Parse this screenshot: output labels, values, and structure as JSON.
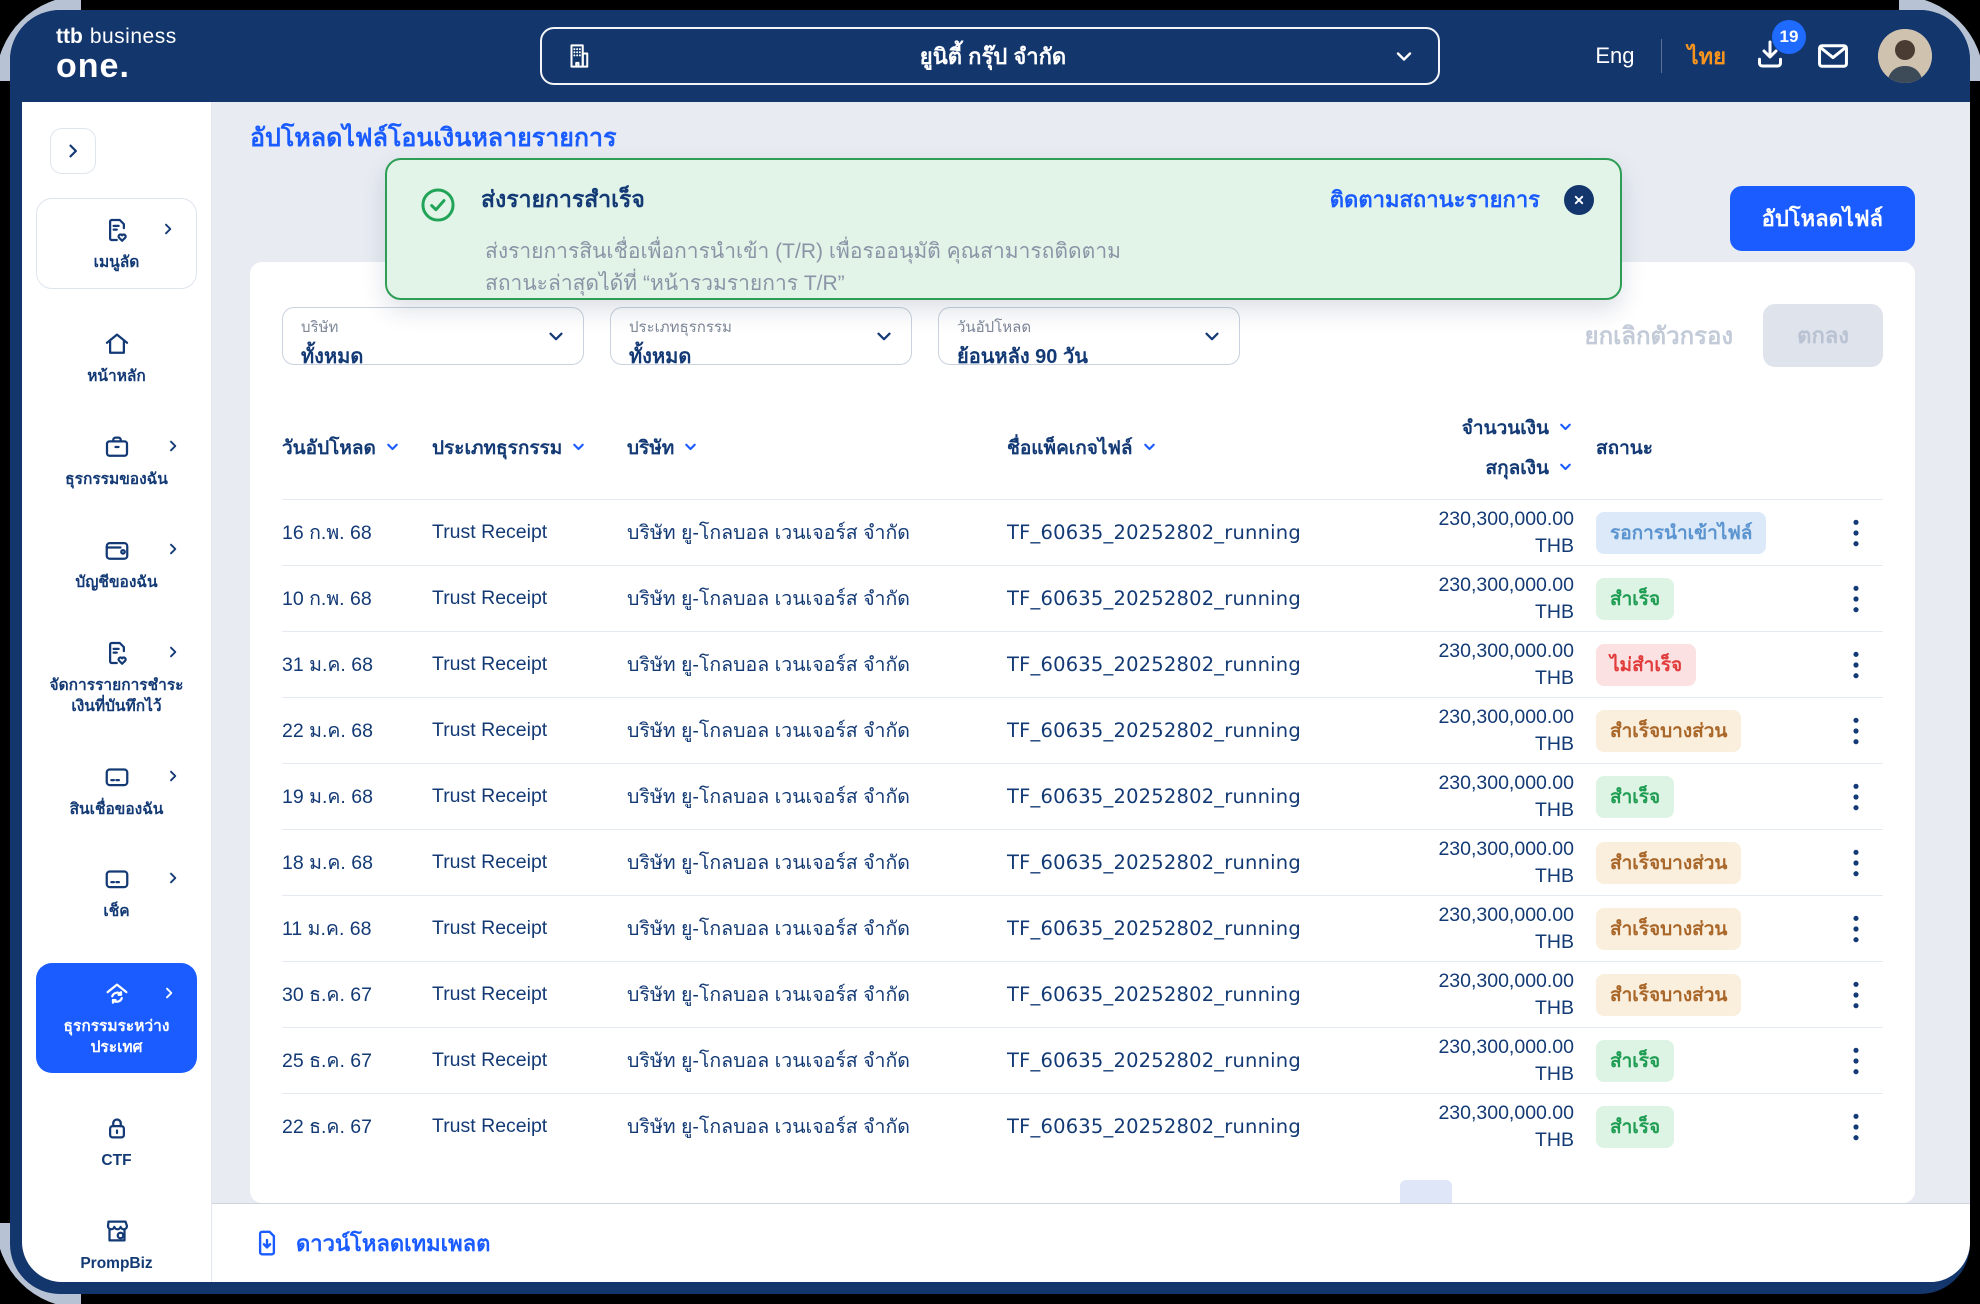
{
  "topbar": {
    "logo": {
      "brand": "ttb",
      "suffix": "business",
      "product": "one."
    },
    "company_selector": {
      "value": "ยูนิตี้ กรุ๊ป จำกัด"
    },
    "lang": {
      "eng": "Eng",
      "thai": "ไทย",
      "active": "ไทย"
    },
    "download_badge": "19"
  },
  "sidebar": {
    "items": [
      {
        "key": "menu-shortcuts",
        "label": "เมนูลัด",
        "icon": "doc-heart",
        "chevron": true,
        "boxed": true
      },
      {
        "key": "home",
        "label": "หน้าหลัก",
        "icon": "home",
        "chevron": false
      },
      {
        "key": "my-transactions",
        "label": "ธุรกรรมของฉัน",
        "icon": "briefcase",
        "chevron": true
      },
      {
        "key": "my-accounts",
        "label": "บัญชีของฉัน",
        "icon": "wallet",
        "chevron": true
      },
      {
        "key": "saved-payments",
        "label": "จัดการรายการชำระเงินที่บันทึกไว้",
        "icon": "doc-heart",
        "chevron": true
      },
      {
        "key": "my-loans",
        "label": "สินเชื่อของฉัน",
        "icon": "card",
        "chevron": true
      },
      {
        "key": "cheque",
        "label": "เช็ค",
        "icon": "card",
        "chevron": true
      },
      {
        "key": "international-transactions",
        "label": "ธุรกรรมระหว่างประเทศ",
        "icon": "globe-home",
        "chevron": true,
        "active": true
      },
      {
        "key": "ctf",
        "label": "CTF",
        "icon": "lock",
        "chevron": false
      },
      {
        "key": "prompbiz",
        "label": "PrompBiz",
        "icon": "store",
        "chevron": false
      }
    ]
  },
  "page": {
    "title": "อัปโหลดไฟล์โอนเงินหลายรายการ"
  },
  "toast": {
    "title": "ส่งรายการสำเร็จ",
    "body_line1": "ส่งรายการสินเชื่อเพื่อการนำเข้า (T/R) เพื่อรออนุมัติ คุณสามารถติดตาม",
    "body_line2": "สถานะล่าสุดได้ที่ “หน้ารวมรายการ T/R”",
    "link": "ติดตามสถานะรายการ"
  },
  "actions": {
    "upload": "อัปโหลดไฟล์"
  },
  "filters": {
    "items": [
      {
        "label": "บริษัท",
        "value": "ทั้งหมด"
      },
      {
        "label": "ประเภทธุรกรรม",
        "value": "ทั้งหมด"
      },
      {
        "label": "วันอัปโหลด",
        "value": "ย้อนหลัง 90 วัน"
      }
    ],
    "clear": "ยกเลิกตัวกรอง",
    "apply": "ตกลง"
  },
  "table": {
    "headers": {
      "upload_date": "วันอัปโหลด",
      "txn_type": "ประเภทธุรกรรม",
      "company": "บริษัท",
      "package_name": "ชื่อแพ็คเกจไฟล์",
      "amount": "จำนวนเงิน",
      "currency": "สกุลเงิน",
      "status": "สถานะ"
    },
    "status_labels": {
      "pending": "รอการนำเข้าไฟล์",
      "success": "สำเร็จ",
      "failed": "ไม่สำเร็จ",
      "partial": "สำเร็จบางส่วน"
    },
    "rows": [
      {
        "date": "16 ก.พ. 68",
        "type": "Trust Receipt",
        "company": "บริษัท ยู-โกลบอล เวนเจอร์ส จำกัด",
        "package": "TF_60635_20252802_running",
        "amount": "230,300,000.00",
        "currency": "THB",
        "status": "pending"
      },
      {
        "date": "10 ก.พ. 68",
        "type": "Trust Receipt",
        "company": "บริษัท ยู-โกลบอล เวนเจอร์ส จำกัด",
        "package": "TF_60635_20252802_running",
        "amount": "230,300,000.00",
        "currency": "THB",
        "status": "success"
      },
      {
        "date": "31 ม.ค. 68",
        "type": "Trust Receipt",
        "company": "บริษัท ยู-โกลบอล เวนเจอร์ส จำกัด",
        "package": "TF_60635_20252802_running",
        "amount": "230,300,000.00",
        "currency": "THB",
        "status": "failed"
      },
      {
        "date": "22 ม.ค. 68",
        "type": "Trust Receipt",
        "company": "บริษัท ยู-โกลบอล เวนเจอร์ส จำกัด",
        "package": "TF_60635_20252802_running",
        "amount": "230,300,000.00",
        "currency": "THB",
        "status": "partial"
      },
      {
        "date": "19 ม.ค. 68",
        "type": "Trust Receipt",
        "company": "บริษัท ยู-โกลบอล เวนเจอร์ส จำกัด",
        "package": "TF_60635_20252802_running",
        "amount": "230,300,000.00",
        "currency": "THB",
        "status": "success"
      },
      {
        "date": "18 ม.ค. 68",
        "type": "Trust Receipt",
        "company": "บริษัท ยู-โกลบอล เวนเจอร์ส จำกัด",
        "package": "TF_60635_20252802_running",
        "amount": "230,300,000.00",
        "currency": "THB",
        "status": "partial"
      },
      {
        "date": "11 ม.ค. 68",
        "type": "Trust Receipt",
        "company": "บริษัท ยู-โกลบอล เวนเจอร์ส จำกัด",
        "package": "TF_60635_20252802_running",
        "amount": "230,300,000.00",
        "currency": "THB",
        "status": "partial"
      },
      {
        "date": "30 ธ.ค. 67",
        "type": "Trust Receipt",
        "company": "บริษัท ยู-โกลบอล เวนเจอร์ส จำกัด",
        "package": "TF_60635_20252802_running",
        "amount": "230,300,000.00",
        "currency": "THB",
        "status": "partial"
      },
      {
        "date": "25 ธ.ค. 67",
        "type": "Trust Receipt",
        "company": "บริษัท ยู-โกลบอล เวนเจอร์ส จำกัด",
        "package": "TF_60635_20252802_running",
        "amount": "230,300,000.00",
        "currency": "THB",
        "status": "success"
      },
      {
        "date": "22 ธ.ค. 67",
        "type": "Trust Receipt",
        "company": "บริษัท ยู-โกลบอล เวนเจอร์ส จำกัด",
        "package": "TF_60635_20252802_running",
        "amount": "230,300,000.00",
        "currency": "THB",
        "status": "success"
      }
    ]
  },
  "footer": {
    "download_template": "ดาวน์โหลดเทมเพลต"
  },
  "colors": {
    "navy": "#13366D",
    "accent_blue": "#1A5CFF",
    "orange": "#F7941E",
    "toast_green_border": "#2E9E57",
    "toast_green_bg": "#E2F4E8",
    "badge_pending_bg": "#DBE9F9",
    "badge_pending_text": "#5B94CF",
    "badge_success_bg": "#DDF3E4",
    "badge_success_text": "#1F9D53",
    "badge_failed_bg": "#FBE1E1",
    "badge_failed_text": "#E13B3B",
    "badge_partial_bg": "#FAEEDD",
    "badge_partial_text": "#A9672A"
  }
}
